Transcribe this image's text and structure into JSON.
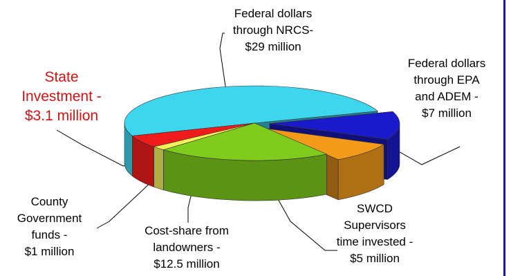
{
  "chart_data": {
    "type": "pie",
    "title": "",
    "units": "million dollars",
    "slices": [
      {
        "key": "nrcs",
        "label": [
          "Federal dollars",
          "through NRCS-",
          "$29 million"
        ],
        "value": 29,
        "color": "#3ed6ee",
        "exploded": false
      },
      {
        "key": "epa",
        "label": [
          "Federal dollars",
          "through EPA",
          "and ADEM -",
          "$7 million"
        ],
        "value": 7,
        "color": "#1a1acc",
        "exploded": true
      },
      {
        "key": "swcd",
        "label": [
          "SWCD",
          "Supervisors",
          "time invested -",
          "$5 million"
        ],
        "value": 5,
        "color": "#f39a1a",
        "exploded": true
      },
      {
        "key": "cost",
        "label": [
          "Cost-share  from",
          "landowners -",
          "$12.5 million"
        ],
        "value": 12.5,
        "color": "#7fcc1c",
        "exploded": false
      },
      {
        "key": "county",
        "label": [
          "County",
          "Government",
          "funds -",
          "$1 million"
        ],
        "value": 1,
        "color": "#f6f25a",
        "exploded": false
      },
      {
        "key": "state",
        "label": [
          "State",
          "Investment -",
          "$3.1 million"
        ],
        "value": 3.1,
        "color": "#f01c1c",
        "exploded": false,
        "label_color": "#cc1414"
      }
    ]
  }
}
